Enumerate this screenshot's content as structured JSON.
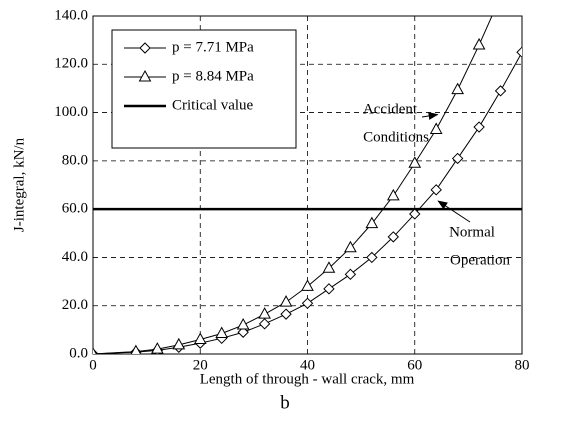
{
  "chart_data": {
    "type": "line",
    "x_label": "Length of through - wall crack, mm",
    "y_label": "J-integral, kN/n",
    "caption": "b",
    "xlim": [
      0,
      80
    ],
    "xticks": [
      0,
      20,
      40,
      60,
      80
    ],
    "ylim": [
      0,
      140
    ],
    "yticks": [
      {
        "value": 0,
        "label": "0.0"
      },
      {
        "value": 20,
        "label": "20.0"
      },
      {
        "value": 40,
        "label": "40.0"
      },
      {
        "value": 60,
        "label": "60.0"
      },
      {
        "value": 80,
        "label": "80.0"
      },
      {
        "value": 100,
        "label": "100.0"
      },
      {
        "value": 120,
        "label": "120.0"
      },
      {
        "value": 140,
        "label": "140.0"
      }
    ],
    "grid": true,
    "series": [
      {
        "name": "p = 7.71 MPa",
        "color": "#000000",
        "marker": "diamond",
        "x": [
          0,
          8,
          12,
          16,
          20,
          24,
          28,
          32,
          36,
          40,
          44,
          48,
          52,
          56,
          60,
          64,
          68,
          72,
          76,
          80
        ],
        "values": [
          0,
          0.8,
          1.5,
          2.8,
          4.5,
          6.5,
          9,
          12.5,
          16.5,
          21,
          27,
          33,
          40,
          48.5,
          58,
          68,
          81,
          94,
          109,
          125
        ]
      },
      {
        "name": "p = 8.84 MPa",
        "color": "#000000",
        "marker": "triangle",
        "x": [
          0,
          8,
          12,
          16,
          20,
          24,
          28,
          32,
          36,
          40,
          44,
          48,
          52,
          56,
          60,
          64,
          68,
          72,
          76
        ],
        "values": [
          0,
          1,
          2,
          3.8,
          6,
          8.5,
          12,
          16.5,
          21.5,
          28,
          35.5,
          44,
          54,
          65.5,
          79,
          93,
          109.5,
          128,
          148
        ]
      }
    ],
    "critical": {
      "name": "Critical value",
      "value": 60,
      "color": "#000000"
    },
    "annotations": [
      {
        "lines": [
          "Accident",
          "Conditions"
        ],
        "x": 65,
        "y": 100
      },
      {
        "lines": [
          "Normal",
          "Operation"
        ],
        "x": 64,
        "y": 65
      }
    ]
  }
}
